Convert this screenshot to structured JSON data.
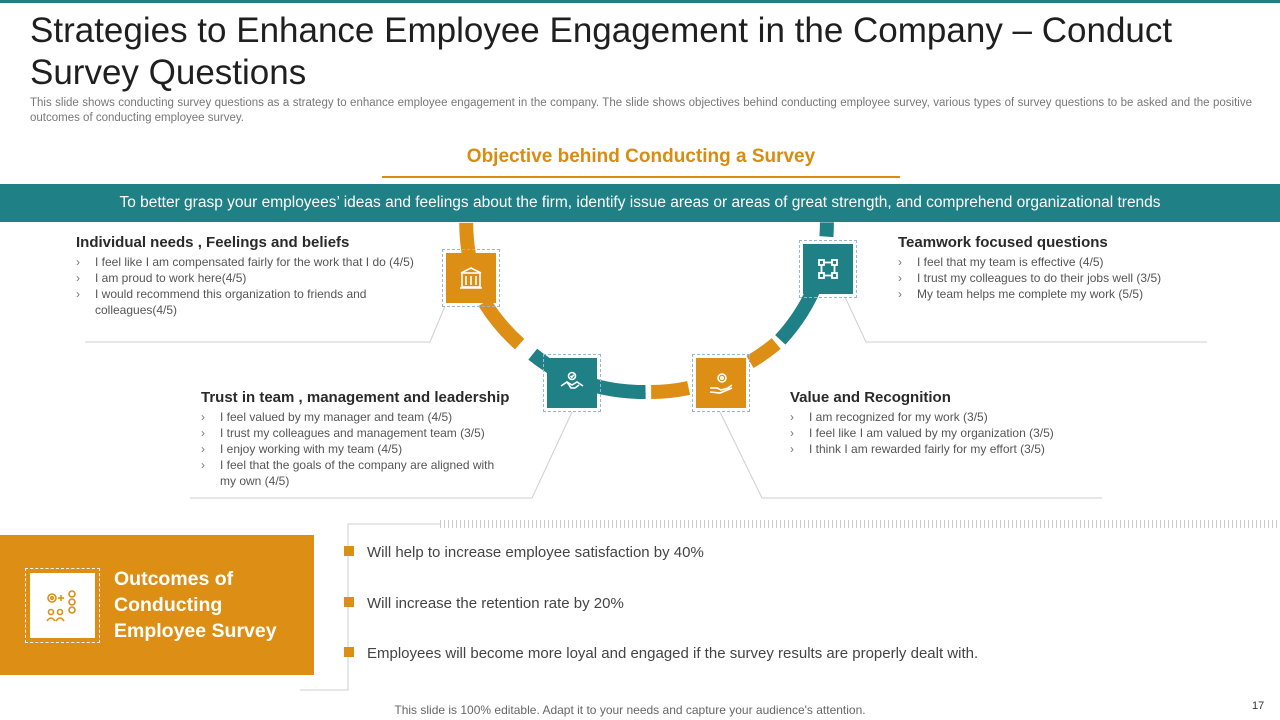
{
  "title": "Strategies to Enhance Employee Engagement in the Company – Conduct Survey Questions",
  "subtitle": "This slide shows conducting survey questions as a strategy to enhance employee engagement in the company. The slide shows objectives behind conducting employee survey, various types of survey questions to be asked and the positive outcomes of conducting employee survey.",
  "objective": {
    "heading": "Objective behind Conducting a Survey",
    "banner": "To better grasp your employees’ ideas and feelings about the firm, identify issue areas or areas of great strength,  and comprehend organizational trends"
  },
  "blocks": {
    "individual": {
      "title": "Individual needs , Feelings and beliefs",
      "items": [
        "I feel like I am compensated fairly for the work that I do (4/5)",
        "I am proud to work here(4/5)",
        "I would recommend this organization to friends and colleagues(4/5)"
      ]
    },
    "trust": {
      "title": "Trust in team , management and leadership",
      "items": [
        "I feel valued  by my manager and team (4/5)",
        "I trust my colleagues and management team (3/5)",
        "I enjoy working with my team  (4/5)",
        "I feel that the goals of the company are aligned with my own (4/5)"
      ]
    },
    "value": {
      "title": "Value and Recognition",
      "items": [
        "I am recognized for my work (3/5)",
        "I feel like I am valued  by my organization  (3/5)",
        "I think I am  rewarded  fairly for my effort (3/5)"
      ]
    },
    "teamwork": {
      "title": "Teamwork focused questions",
      "items": [
        "I feel that my team is effective  (4/5)",
        "I trust my colleagues to do their jobs well (3/5)",
        "My team helps me  complete my work (5/5)"
      ]
    }
  },
  "bullet_glyph": "›",
  "outcomes": {
    "title": "Outcomes of Conducting Employee Survey",
    "items": [
      "Will help to increase employee satisfaction by 40%",
      "Will increase the retention rate by 20%",
      "Employees will become more loyal and engaged if the survey  results are properly dealt with."
    ]
  },
  "footer": "This slide is 100% editable. Adapt it to your needs and capture your audience's attention.",
  "page_number": "17",
  "colors": {
    "teal": "#1f8085",
    "orange": "#dc8f14"
  },
  "icons": [
    "building-icon",
    "handshake-icon",
    "hand-gear-icon",
    "team-cycle-icon",
    "survey-people-icon"
  ]
}
